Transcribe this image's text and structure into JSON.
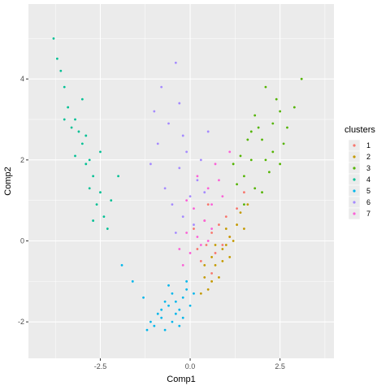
{
  "chart_data": {
    "type": "scatter",
    "title": "",
    "xlabel": "Comp1",
    "ylabel": "Comp2",
    "xlim": [
      -4.5,
      4.0
    ],
    "ylim": [
      -2.9,
      5.85
    ],
    "x_ticks": [
      -2.5,
      0.0,
      2.5
    ],
    "x_tick_labels": [
      "-2.5",
      "0.0",
      "2.5"
    ],
    "y_ticks": [
      -2,
      0,
      2,
      4
    ],
    "y_tick_labels": [
      "-2",
      "0",
      "2",
      "4"
    ],
    "grid": true,
    "legend": {
      "title": "clusters",
      "position": "right",
      "entries": [
        "1",
        "2",
        "3",
        "4",
        "5",
        "6",
        "7"
      ]
    },
    "series": [
      {
        "name": "1",
        "color": "#F8766D",
        "points": [
          [
            0.45,
            -0.1
          ],
          [
            0.6,
            0.2
          ],
          [
            0.3,
            -0.5
          ],
          [
            0.8,
            0.4
          ],
          [
            0.2,
            -0.2
          ],
          [
            0.7,
            -0.3
          ],
          [
            1.0,
            0.6
          ],
          [
            0.5,
            0.9
          ],
          [
            0.9,
            -0.1
          ],
          [
            1.3,
            0.8
          ],
          [
            0.1,
            0.3
          ],
          [
            1.5,
            1.2
          ],
          [
            0.6,
            -0.8
          ],
          [
            1.1,
            0.1
          ],
          [
            0.4,
            0.5
          ]
        ]
      },
      {
        "name": "2",
        "color": "#C49A00",
        "points": [
          [
            0.6,
            -0.4
          ],
          [
            0.9,
            -0.2
          ],
          [
            0.4,
            -0.9
          ],
          [
            1.1,
            0.1
          ],
          [
            1.3,
            0.4
          ],
          [
            0.7,
            -0.6
          ],
          [
            0.5,
            -1.2
          ],
          [
            1.0,
            -0.1
          ],
          [
            1.4,
            0.7
          ],
          [
            0.8,
            -0.9
          ],
          [
            0.3,
            -1.3
          ],
          [
            1.2,
            0.0
          ],
          [
            1.6,
            0.9
          ],
          [
            0.9,
            -0.5
          ],
          [
            0.6,
            -1.0
          ],
          [
            1.1,
            -0.4
          ],
          [
            0.7,
            -0.1
          ],
          [
            1.5,
            0.3
          ],
          [
            0.4,
            -0.6
          ],
          [
            1.0,
            0.3
          ]
        ]
      },
      {
        "name": "3",
        "color": "#53B400",
        "points": [
          [
            1.7,
            2.0
          ],
          [
            2.0,
            2.5
          ],
          [
            1.5,
            1.6
          ],
          [
            2.3,
            2.9
          ],
          [
            1.8,
            1.3
          ],
          [
            2.1,
            2.0
          ],
          [
            2.5,
            3.2
          ],
          [
            1.4,
            2.1
          ],
          [
            2.2,
            1.7
          ],
          [
            1.9,
            2.8
          ],
          [
            2.6,
            2.4
          ],
          [
            1.6,
            2.5
          ],
          [
            2.0,
            1.2
          ],
          [
            2.4,
            3.5
          ],
          [
            1.3,
            1.4
          ],
          [
            2.7,
            2.8
          ],
          [
            1.8,
            3.1
          ],
          [
            2.3,
            2.2
          ],
          [
            1.5,
            0.9
          ],
          [
            2.9,
            3.3
          ],
          [
            2.1,
            3.8
          ],
          [
            1.2,
            1.9
          ],
          [
            3.1,
            4.0
          ],
          [
            2.5,
            1.9
          ],
          [
            1.7,
            2.7
          ]
        ]
      },
      {
        "name": "4",
        "color": "#00C094",
        "points": [
          [
            -3.2,
            3.0
          ],
          [
            -2.8,
            2.0
          ],
          [
            -3.5,
            3.8
          ],
          [
            -2.5,
            1.2
          ],
          [
            -3.0,
            2.4
          ],
          [
            -2.7,
            1.6
          ],
          [
            -3.4,
            3.3
          ],
          [
            -2.4,
            0.6
          ],
          [
            -2.9,
            1.9
          ],
          [
            -3.6,
            4.2
          ],
          [
            -2.6,
            0.9
          ],
          [
            -3.1,
            2.7
          ],
          [
            -2.3,
            0.3
          ],
          [
            -3.3,
            2.8
          ],
          [
            -2.8,
            1.3
          ],
          [
            -3.7,
            4.5
          ],
          [
            -2.2,
            1.0
          ],
          [
            -3.0,
            3.5
          ],
          [
            -2.5,
            2.2
          ],
          [
            -3.8,
            5.0
          ],
          [
            -2.7,
            0.5
          ],
          [
            -3.2,
            2.1
          ],
          [
            -2.0,
            1.6
          ],
          [
            -3.5,
            3.0
          ],
          [
            -2.9,
            2.6
          ]
        ]
      },
      {
        "name": "5",
        "color": "#00B6EB",
        "points": [
          [
            -0.6,
            -1.6
          ],
          [
            -0.4,
            -1.8
          ],
          [
            -0.8,
            -1.9
          ],
          [
            -0.2,
            -1.4
          ],
          [
            -0.5,
            -1.3
          ],
          [
            -1.0,
            -2.1
          ],
          [
            -0.3,
            -1.7
          ],
          [
            -0.7,
            -1.5
          ],
          [
            -0.1,
            -1.2
          ],
          [
            -0.9,
            -1.8
          ],
          [
            -0.5,
            -2.0
          ],
          [
            -0.2,
            -1.9
          ],
          [
            -1.2,
            -2.2
          ],
          [
            -0.6,
            -1.1
          ],
          [
            0.1,
            -1.3
          ],
          [
            -0.4,
            -1.5
          ],
          [
            -0.8,
            -1.7
          ],
          [
            -1.1,
            -2.0
          ],
          [
            0.0,
            -1.6
          ],
          [
            -0.3,
            -2.1
          ],
          [
            -1.3,
            -1.4
          ],
          [
            -1.6,
            -1.0
          ],
          [
            -1.9,
            -0.6
          ],
          [
            -0.7,
            -2.2
          ],
          [
            -0.1,
            -1.0
          ]
        ]
      },
      {
        "name": "6",
        "color": "#A58AFF",
        "points": [
          [
            -0.2,
            0.6
          ],
          [
            0.0,
            1.1
          ],
          [
            -0.4,
            0.2
          ],
          [
            0.2,
            1.5
          ],
          [
            -0.3,
            1.8
          ],
          [
            0.1,
            0.4
          ],
          [
            -0.1,
            2.2
          ],
          [
            -0.5,
            0.9
          ],
          [
            0.3,
            2.0
          ],
          [
            -0.7,
            1.3
          ],
          [
            -0.2,
            2.6
          ],
          [
            0.4,
            1.2
          ],
          [
            -0.6,
            2.9
          ],
          [
            -0.9,
            2.4
          ],
          [
            -0.3,
            3.4
          ],
          [
            -1.1,
            1.9
          ],
          [
            0.5,
            2.7
          ],
          [
            -0.8,
            3.8
          ],
          [
            -1.0,
            3.2
          ],
          [
            -0.4,
            4.4
          ]
        ]
      },
      {
        "name": "7",
        "color": "#FB61D7",
        "points": [
          [
            0.2,
            0.1
          ],
          [
            0.4,
            0.5
          ],
          [
            0.0,
            -0.3
          ],
          [
            0.6,
            0.9
          ],
          [
            -0.2,
            -0.6
          ],
          [
            0.5,
            1.3
          ],
          [
            0.1,
            0.8
          ],
          [
            -0.1,
            0.2
          ],
          [
            0.8,
            1.5
          ],
          [
            0.3,
            -0.1
          ],
          [
            0.7,
            1.9
          ],
          [
            -0.3,
            -0.2
          ],
          [
            0.9,
            1.1
          ],
          [
            0.2,
            1.6
          ],
          [
            1.1,
            2.2
          ],
          [
            0.5,
            0.0
          ],
          [
            -0.1,
            1.0
          ],
          [
            0.6,
            0.3
          ]
        ]
      }
    ]
  }
}
